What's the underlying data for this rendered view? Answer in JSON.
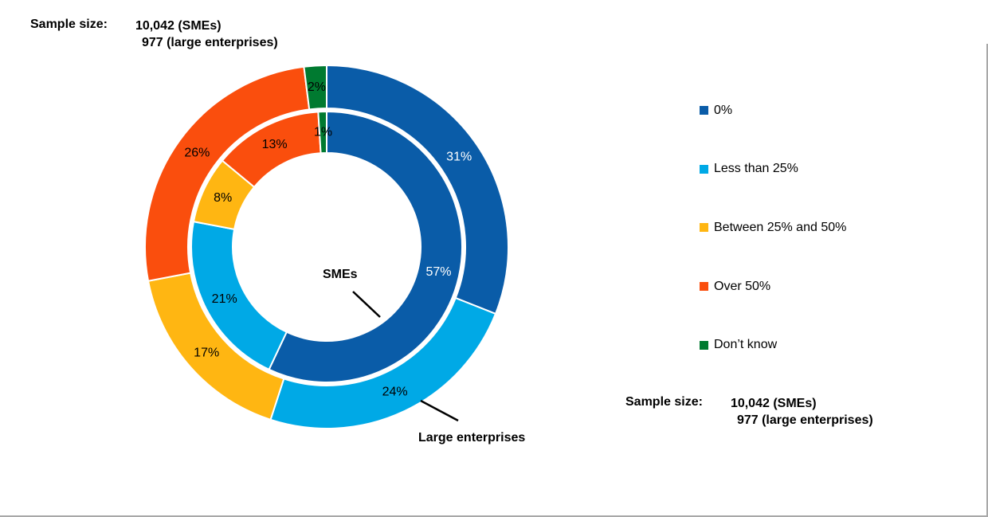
{
  "notes": {
    "top_left": {
      "label": "Sample size:",
      "line1": "10,042 (SMEs)",
      "line2": "977 (large enterprises)"
    },
    "bottom_right": {
      "label": "Sample size:",
      "line1": "10,042 (SMEs)",
      "line2": "977 (large enterprises)"
    }
  },
  "legend": {
    "position": "right",
    "entries": [
      {
        "label": "0%",
        "color": "#0A5CA8"
      },
      {
        "label": "Less than 25%",
        "color": "#00A9E6"
      },
      {
        "label": "Between 25% and 50%",
        "color": "#FFB612"
      },
      {
        "label": "Over 50%",
        "color": "#FA4E0D"
      },
      {
        "label": "Don’t know",
        "color": "#007A30"
      }
    ]
  },
  "chart_data": {
    "type": "pie",
    "subtype": "double-donut",
    "grid": false,
    "legend_position": "right",
    "categories": [
      "0%",
      "Less than 25%",
      "Between 25% and 50%",
      "Over 50%",
      "Don’t know"
    ],
    "colors": [
      "#0A5CA8",
      "#00A9E6",
      "#FFB612",
      "#FA4E0D",
      "#007A30"
    ],
    "series": [
      {
        "name": "SMEs",
        "ring": "inner",
        "values": [
          57,
          21,
          8,
          13,
          1
        ],
        "labels": [
          "57%",
          "21%",
          "8%",
          "13%",
          "1%"
        ],
        "label_colors": [
          "#FFFFFF",
          "#000000",
          "#000000",
          "#000000",
          "#000000"
        ]
      },
      {
        "name": "Large enterprises",
        "ring": "outer",
        "values": [
          31,
          24,
          17,
          26,
          2
        ],
        "labels": [
          "31%",
          "24%",
          "17%",
          "26%",
          "2%"
        ],
        "label_colors": [
          "#FFFFFF",
          "#000000",
          "#000000",
          "#000000",
          "#000000"
        ]
      }
    ],
    "annotations": [
      {
        "text": "SMEs",
        "points_to": "inner ring"
      },
      {
        "text": "Large enterprises",
        "points_to": "outer ring"
      }
    ]
  }
}
